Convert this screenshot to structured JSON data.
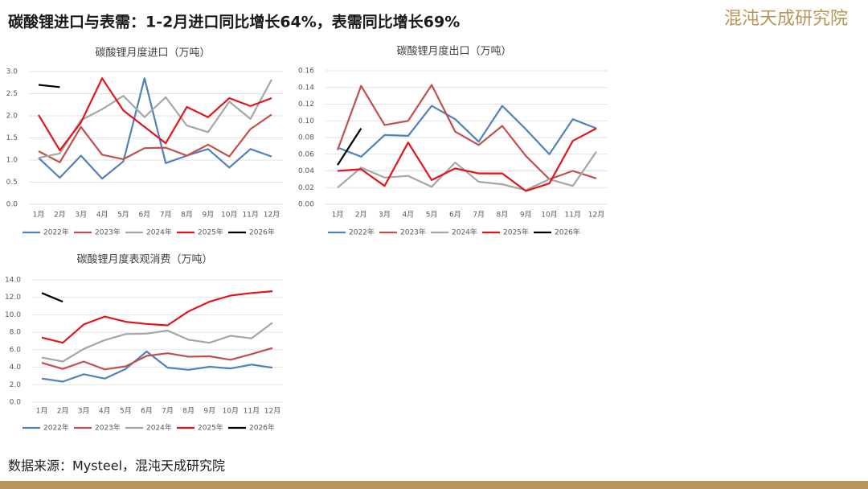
{
  "header": {
    "title": "碳酸锂进口与表需：1-2月进口同比增长64%，表需同比增长69%",
    "logo": "混沌天成研究院"
  },
  "source": "数据来源：Mysteel，混沌天成研究院",
  "chart_data": [
    {
      "type": "line",
      "title": "碳酸锂月度进口（万吨）",
      "categories": [
        "1月",
        "2月",
        "3月",
        "4月",
        "5月",
        "6月",
        "7月",
        "8月",
        "9月",
        "10月",
        "11月",
        "12月"
      ],
      "ylim": [
        0,
        3
      ],
      "yticks": [
        {
          "value": 0,
          "label": "0.0"
        },
        0.5,
        {
          "value": 1,
          "label": "1.0"
        },
        1.5,
        {
          "value": 2,
          "label": "2.0"
        },
        2.5,
        {
          "value": 3,
          "label": "3.0"
        }
      ],
      "grid": true,
      "series": [
        {
          "name": "2022年",
          "color": "#4f81bd",
          "values": [
            1.05,
            0.6,
            1.1,
            0.58,
            0.97,
            2.85,
            0.93,
            1.1,
            1.25,
            0.83,
            1.25,
            1.08
          ]
        },
        {
          "name": "2023年",
          "color": "#c0504d",
          "values": [
            1.2,
            0.95,
            1.75,
            1.12,
            1.02,
            1.27,
            1.28,
            1.1,
            1.35,
            1.08,
            1.7,
            2.03
          ]
        },
        {
          "name": "2024年",
          "color": "#a6a6a6",
          "values": [
            1.05,
            1.15,
            1.9,
            2.15,
            2.45,
            1.97,
            2.42,
            1.78,
            1.63,
            2.32,
            1.93,
            2.82
          ]
        },
        {
          "name": "2025年",
          "color": "#e3151a",
          "values": [
            2.02,
            1.22,
            1.85,
            2.85,
            2.12,
            1.75,
            1.38,
            2.2,
            1.97,
            2.4,
            2.22,
            2.4
          ]
        },
        {
          "name": "2026年",
          "color": "#000000",
          "values": [
            2.7,
            2.65,
            null,
            null,
            null,
            null,
            null,
            null,
            null,
            null,
            null,
            null
          ]
        }
      ]
    },
    {
      "type": "line",
      "title": "碳酸锂月度出口（万吨）",
      "categories": [
        "1月",
        "2月",
        "3月",
        "4月",
        "5月",
        "6月",
        "7月",
        "8月",
        "9月",
        "10月",
        "11月",
        "12月"
      ],
      "ylim": [
        0,
        0.16
      ],
      "yticks": [
        {
          "value": 0,
          "label": "0.00"
        },
        0.02,
        0.04,
        0.06,
        0.08,
        {
          "value": 0.1,
          "label": "0.10"
        },
        0.12,
        0.14,
        0.16
      ],
      "grid": true,
      "series": [
        {
          "name": "2022年",
          "color": "#4f81bd",
          "values": [
            0.068,
            0.057,
            0.083,
            0.082,
            0.118,
            0.102,
            0.075,
            0.118,
            0.09,
            0.06,
            0.102,
            0.091
          ]
        },
        {
          "name": "2023年",
          "color": "#c0504d",
          "values": [
            0.065,
            0.142,
            0.095,
            0.1,
            0.143,
            0.087,
            0.071,
            0.094,
            0.058,
            0.03,
            0.04,
            0.031
          ]
        },
        {
          "name": "2024年",
          "color": "#a6a6a6",
          "values": [
            0.02,
            0.044,
            0.032,
            0.034,
            0.021,
            0.05,
            0.027,
            0.024,
            0.017,
            0.03,
            0.022,
            0.063
          ]
        },
        {
          "name": "2025年",
          "color": "#e3151a",
          "values": [
            0.04,
            0.042,
            0.022,
            0.074,
            0.029,
            0.043,
            0.037,
            0.037,
            0.016,
            0.025,
            0.076,
            0.091
          ]
        },
        {
          "name": "2026年",
          "color": "#000000",
          "values": [
            0.047,
            0.091,
            null,
            null,
            null,
            null,
            null,
            null,
            null,
            null,
            null,
            null
          ]
        }
      ]
    },
    {
      "type": "line",
      "title": "碳酸锂月度表观消费（万吨）",
      "categories": [
        "1月",
        "2月",
        "3月",
        "4月",
        "5月",
        "6月",
        "7月",
        "8月",
        "9月",
        "10月",
        "11月",
        "12月"
      ],
      "ylim": [
        0,
        14
      ],
      "yticks": [
        {
          "value": 0,
          "label": "0.0"
        },
        {
          "value": 2,
          "label": "2.0"
        },
        {
          "value": 4,
          "label": "4.0"
        },
        {
          "value": 6,
          "label": "6.0"
        },
        {
          "value": 8,
          "label": "8.0"
        },
        {
          "value": 10,
          "label": "10.0"
        },
        {
          "value": 12,
          "label": "12.0"
        },
        {
          "value": 14,
          "label": "14.0"
        }
      ],
      "grid": true,
      "series": [
        {
          "name": "2022年",
          "color": "#4f81bd",
          "values": [
            2.7,
            2.35,
            3.2,
            2.7,
            3.8,
            5.8,
            3.95,
            3.7,
            4.05,
            3.85,
            4.3,
            3.95
          ]
        },
        {
          "name": "2023年",
          "color": "#c0504d",
          "values": [
            4.5,
            3.8,
            4.65,
            3.75,
            4.1,
            5.3,
            5.6,
            5.2,
            5.25,
            4.85,
            5.5,
            6.2
          ]
        },
        {
          "name": "2024年",
          "color": "#a6a6a6",
          "values": [
            5.1,
            4.65,
            6.1,
            7.1,
            7.8,
            7.85,
            8.2,
            7.15,
            6.8,
            7.6,
            7.3,
            9.1
          ]
        },
        {
          "name": "2025年",
          "color": "#e3151a",
          "values": [
            7.4,
            6.8,
            8.9,
            9.8,
            9.2,
            8.95,
            8.8,
            10.4,
            11.5,
            12.2,
            12.5,
            12.7
          ]
        },
        {
          "name": "2026年",
          "color": "#000000",
          "values": [
            12.5,
            11.5,
            null,
            null,
            null,
            null,
            null,
            null,
            null,
            null,
            null,
            null
          ]
        }
      ]
    }
  ]
}
